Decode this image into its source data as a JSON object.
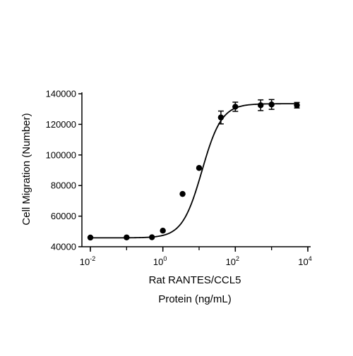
{
  "chart_data": {
    "type": "scatter",
    "title": "",
    "xlabel_lines": [
      "Rat RANTES/CCL5",
      "Protein (ng/mL)"
    ],
    "ylabel": "Cell Migration (Number)",
    "x_scale": "log10",
    "xlim": [
      0.01,
      10000
    ],
    "ylim": [
      40000,
      140000
    ],
    "x_ticks": [
      {
        "value": 0.01,
        "base": "10",
        "exp": "-2"
      },
      {
        "value": 1,
        "base": "10",
        "exp": "0"
      },
      {
        "value": 100,
        "base": "10",
        "exp": "2"
      },
      {
        "value": 10000,
        "base": "10",
        "exp": "4"
      }
    ],
    "y_ticks": [
      {
        "value": 40000,
        "label": "40000"
      },
      {
        "value": 60000,
        "label": "60000"
      },
      {
        "value": 80000,
        "label": "80000"
      },
      {
        "value": 100000,
        "label": "100000"
      },
      {
        "value": 120000,
        "label": "120000"
      },
      {
        "value": 140000,
        "label": "140000"
      }
    ],
    "series": [
      {
        "marker": "circle",
        "color": "#000000",
        "points": [
          {
            "x": 0.01,
            "y": 46000,
            "err": 600
          },
          {
            "x": 0.1,
            "y": 46100,
            "err": 600
          },
          {
            "x": 0.5,
            "y": 46200,
            "err": 700
          },
          {
            "x": 1.0,
            "y": 50500,
            "err": 900
          },
          {
            "x": 3.5,
            "y": 74500,
            "err": 1000
          },
          {
            "x": 10,
            "y": 91500,
            "err": 1200
          },
          {
            "x": 40,
            "y": 124500,
            "err": 4200
          },
          {
            "x": 100,
            "y": 131500,
            "err": 3000
          },
          {
            "x": 500,
            "y": 132500,
            "err": 3500
          },
          {
            "x": 1000,
            "y": 133000,
            "err": 3200
          },
          {
            "x": 5000,
            "y": 132500,
            "err": 1800
          }
        ]
      }
    ],
    "fit_curve": {
      "type": "4PL",
      "bottom": 45800,
      "top": 133500,
      "ec50": 12,
      "hill": 1.6
    },
    "grid": false,
    "legend": "none"
  }
}
